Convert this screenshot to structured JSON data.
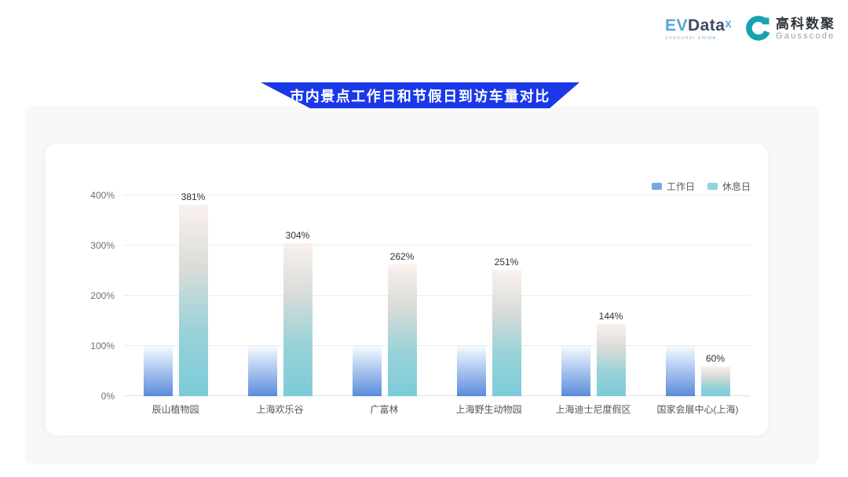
{
  "header": {
    "evdata": {
      "ev": "EV",
      "data": "Data",
      "sup": "X",
      "sub_gray": "SHANGHAI",
      "sub_blue": "CHINA"
    },
    "gausscode": {
      "cn": "高科数聚",
      "en": "Gausscode"
    }
  },
  "banner": {
    "title": "市内景点工作日和节假日到访车量对比"
  },
  "chart_data": {
    "type": "bar",
    "title": "市内景点工作日和节假日到访车量对比",
    "categories": [
      "辰山植物园",
      "上海欢乐谷",
      "广富林",
      "上海野生动物园",
      "上海迪士尼度假区",
      "国家会展中心(上海)"
    ],
    "series": [
      {
        "name": "工作日",
        "values": [
          100,
          100,
          100,
          100,
          100,
          100
        ],
        "legend_color": "#7aa7e4",
        "gradient": [
          "#f5fbff",
          "#5a8cdb"
        ]
      },
      {
        "name": "休息日",
        "values": [
          381,
          304,
          262,
          251,
          144,
          60
        ],
        "legend_color": "#8ed5e0",
        "gradient": [
          "#faf1ee",
          "#d9dcd8",
          "#98d2d8",
          "#7ccbd9"
        ]
      }
    ],
    "data_labels": [
      "381%",
      "304%",
      "262%",
      "251%",
      "144%",
      "60%"
    ],
    "ytick_labels": [
      "0%",
      "100%",
      "200%",
      "300%",
      "400%"
    ],
    "ylim": [
      0,
      400
    ],
    "grid": true,
    "legend_position": "top-right"
  },
  "colors": {
    "banner_blue": "#1a38e8",
    "panel_bg": "#f8f8f9",
    "grid_line": "#ececec",
    "axis_line": "#e0e0e0",
    "tick_text": "#707070",
    "value_text": "#303030",
    "gauss_teal": "#16a2b3"
  }
}
